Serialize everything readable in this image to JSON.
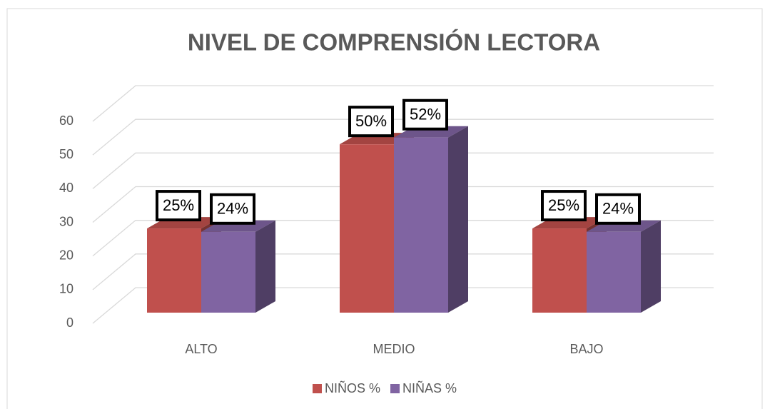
{
  "chart_data": {
    "type": "bar3d",
    "title": "NIVEL DE COMPRENSIÓN LECTORA",
    "categories": [
      "ALTO",
      "MEDIO",
      "BAJO"
    ],
    "series": [
      {
        "name": "NIÑOS %",
        "color": "#c0504d",
        "values": [
          25,
          50,
          25
        ],
        "value_labels": [
          "25%",
          "50%",
          "25%"
        ]
      },
      {
        "name": "NIÑAS %",
        "color": "#8064a2",
        "values": [
          24,
          52,
          24
        ],
        "value_labels": [
          "24%",
          "52%",
          "24%"
        ]
      }
    ],
    "ylim": [
      0,
      60
    ],
    "yticks": [
      0,
      10,
      20,
      30,
      40,
      50,
      60
    ],
    "grid": true,
    "legend": "bottom"
  }
}
